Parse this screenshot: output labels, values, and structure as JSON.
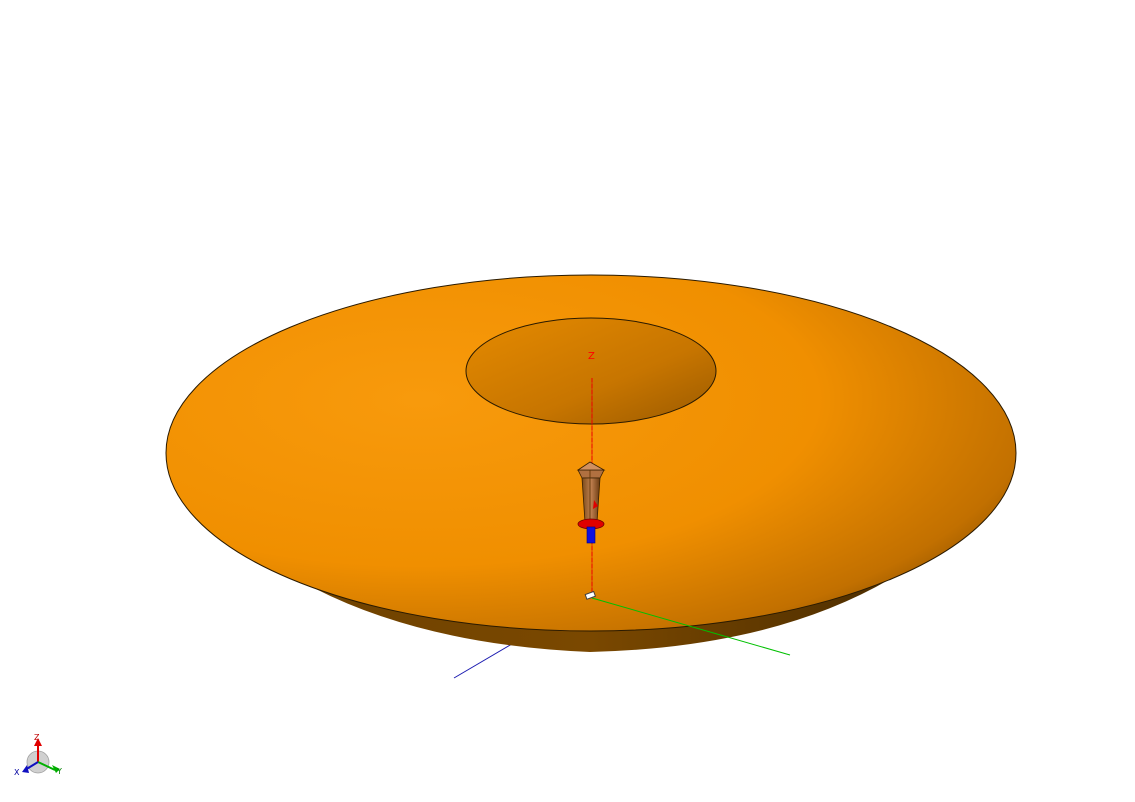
{
  "scene": {
    "background": "#ffffff",
    "model_color": "#f39200",
    "model_shadow_color": "#6a3f00",
    "axis_colors": {
      "x": "#0000c0",
      "y": "#00c000",
      "z": "#ff0000"
    }
  },
  "axes": {
    "z_label": "Z"
  },
  "triad": {
    "x_label": "X",
    "y_label": "Y",
    "z_label": "Z"
  },
  "icons": {
    "probe": "probe-feed-icon",
    "triad": "coordinate-triad-icon"
  }
}
